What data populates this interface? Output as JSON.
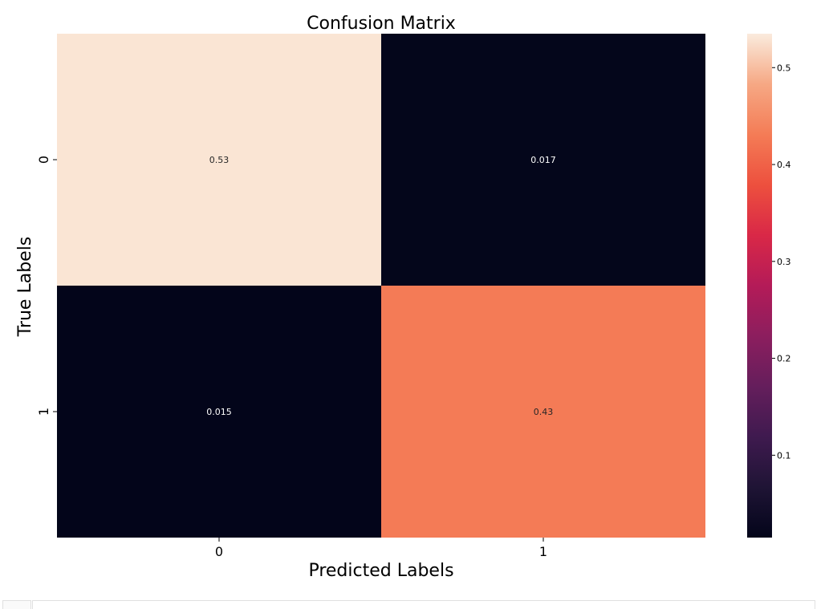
{
  "chart_data": {
    "type": "heatmap",
    "title": "Confusion Matrix",
    "xlabel": "Predicted Labels",
    "ylabel": "True Labels",
    "x_categories": [
      "0",
      "1"
    ],
    "y_categories": [
      "0",
      "1"
    ],
    "values": [
      [
        0.53,
        0.017
      ],
      [
        0.015,
        0.43
      ]
    ],
    "annotations": [
      [
        "0.53",
        "0.017"
      ],
      [
        "0.015",
        "0.43"
      ]
    ],
    "colormap": "rocket",
    "colorbar": {
      "range": [
        0.015,
        0.535
      ],
      "ticks": [
        0.1,
        0.2,
        0.3,
        0.4,
        0.5
      ],
      "tick_labels": [
        "0.1",
        "0.2",
        "0.3",
        "0.4",
        "0.5"
      ]
    },
    "grid": false
  }
}
